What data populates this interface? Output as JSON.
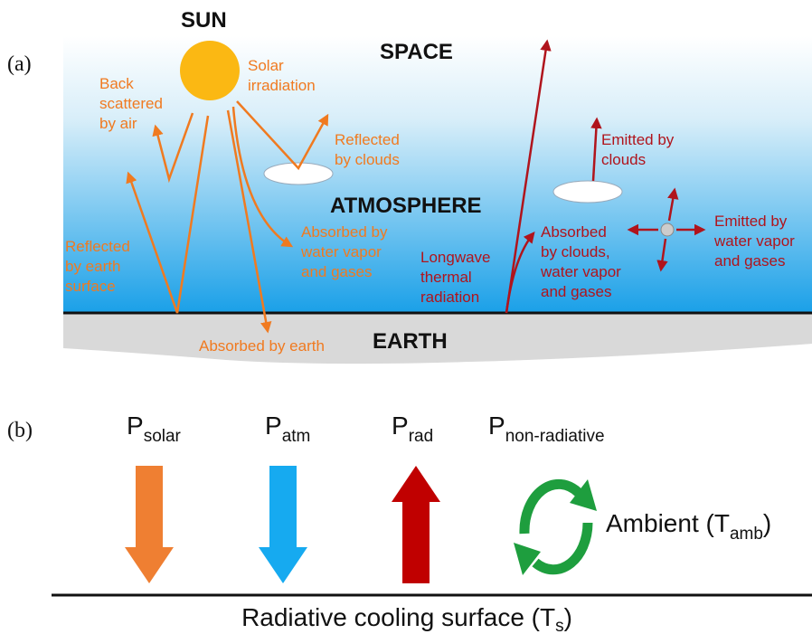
{
  "panel_a": {
    "tag": "(a)",
    "sun": "SUN",
    "space": "SPACE",
    "atmosphere": "ATMOSPHERE",
    "earth": "EARTH",
    "solar_irradiation": [
      "Solar",
      "irradiation"
    ],
    "back_scattered": [
      "Back",
      "scattered",
      "by air"
    ],
    "reflected_clouds": [
      "Reflected",
      "by clouds"
    ],
    "absorbed_water": [
      "Absorbed by",
      "water vapor",
      "and gases"
    ],
    "reflected_earth": [
      "Reflected",
      "by earth",
      "surface"
    ],
    "absorbed_earth": "Absorbed by earth",
    "longwave": [
      "Longwave",
      "thermal",
      "radiation"
    ],
    "emitted_clouds": [
      "Emitted by",
      "clouds"
    ],
    "absorbed_clouds": [
      "Absorbed",
      "by clouds,",
      "water vapor",
      "and gases"
    ],
    "emitted_water": [
      "Emitted by",
      "water vapor",
      "and gases"
    ]
  },
  "panel_b": {
    "tag": "(b)",
    "p_solar": {
      "main": "P",
      "sub": "solar"
    },
    "p_atm": {
      "main": "P",
      "sub": "atm"
    },
    "p_rad": {
      "main": "P",
      "sub": "rad"
    },
    "p_nonrad": {
      "main": "P",
      "sub": "non-radiative"
    },
    "ambient": {
      "before": "Ambient (T",
      "sub": "amb",
      "after": ")"
    },
    "surface": {
      "before": "Radiative cooling surface (T",
      "sub": "s",
      "after": ")"
    }
  }
}
